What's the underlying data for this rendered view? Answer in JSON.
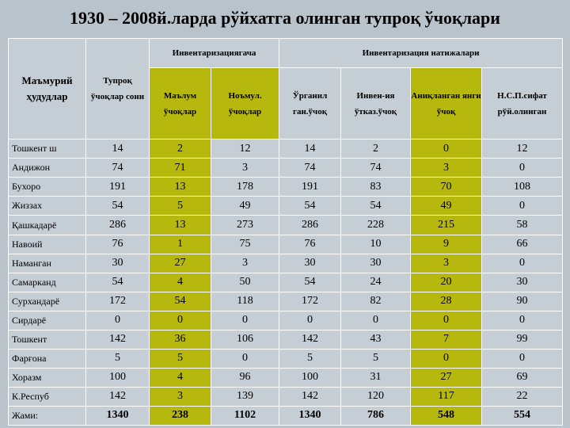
{
  "title": "1930 – 2008й.ларда рўйхатга олинган тупроқ ўчоқлари",
  "table": {
    "header": {
      "region": "Маъмурий ҳудудлар",
      "total": "Тупроқ ўчоқлар сони",
      "before": "Инвентаризациягача",
      "before_cols": [
        "Маълум ўчоқлар",
        "Ноъмул. ўчоқлар"
      ],
      "results": "Инвентаризация натижалари",
      "results_cols": [
        "Ўрганил ган.ўчоқ",
        "Инвен-ия ўтказ.ўчоқ",
        "Аниқланган янги ўчоқ",
        "Н.С.П.сифат рўй.олинган"
      ]
    },
    "rows": [
      [
        "Тошкент ш",
        14,
        2,
        12,
        14,
        2,
        0,
        12
      ],
      [
        "Андижон",
        74,
        71,
        3,
        74,
        74,
        3,
        0
      ],
      [
        "Бухоро",
        191,
        13,
        178,
        191,
        83,
        70,
        108
      ],
      [
        "Жиззах",
        54,
        5,
        49,
        54,
        54,
        49,
        0
      ],
      [
        "Қашкадарё",
        286,
        13,
        273,
        286,
        228,
        215,
        58
      ],
      [
        "Навоий",
        76,
        1,
        75,
        76,
        10,
        9,
        66
      ],
      [
        "Наманган",
        30,
        27,
        3,
        30,
        30,
        3,
        0
      ],
      [
        "Самарканд",
        54,
        4,
        50,
        54,
        24,
        20,
        30
      ],
      [
        "Сурхандарё",
        172,
        54,
        118,
        172,
        82,
        28,
        90
      ],
      [
        "Сирдарё",
        0,
        0,
        0,
        0,
        0,
        0,
        0
      ],
      [
        "Тошкент",
        142,
        36,
        106,
        142,
        43,
        7,
        99
      ],
      [
        "Фарғона",
        5,
        5,
        0,
        5,
        5,
        0,
        0
      ],
      [
        "Хоразм",
        100,
        4,
        96,
        100,
        31,
        27,
        69
      ],
      [
        "К.Респуб",
        142,
        3,
        139,
        142,
        120,
        117,
        22
      ],
      [
        "Жами:",
        1340,
        238,
        1102,
        1340,
        786,
        548,
        554
      ]
    ]
  }
}
